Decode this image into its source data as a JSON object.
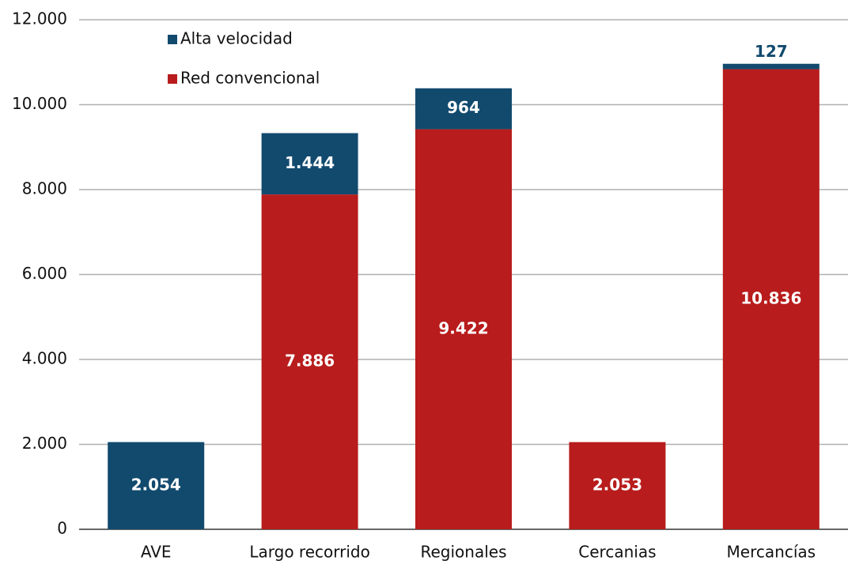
{
  "chart_data": {
    "type": "stacked_bar",
    "categories": [
      "AVE",
      "Largo recorrido",
      "Regionales",
      "Cercanias",
      "Mercancías"
    ],
    "series": [
      {
        "name": "Alta velocidad",
        "color": "#124a6e",
        "values": [
          2054,
          1444,
          964,
          null,
          127
        ],
        "value_labels": [
          "2.054",
          "1.444",
          "964",
          null,
          "127"
        ]
      },
      {
        "name": "Red convencional",
        "color": "#b81c1c",
        "values": [
          null,
          7886,
          9422,
          2053,
          10836
        ],
        "value_labels": [
          null,
          "7.886",
          "9.422",
          "2.053",
          "10.836"
        ]
      }
    ],
    "ylim": [
      0,
      12000
    ],
    "yticks": [
      0,
      {
        "value": 2000,
        "label": "2.000"
      },
      {
        "value": 4000,
        "label": "4.000"
      },
      {
        "value": 6000,
        "label": "6.000"
      },
      {
        "value": 8000,
        "label": "8.000"
      },
      {
        "value": 10000,
        "label": "10.000"
      },
      {
        "value": 12000,
        "label": "12.000"
      }
    ],
    "grid": true,
    "legend": "top-left"
  }
}
